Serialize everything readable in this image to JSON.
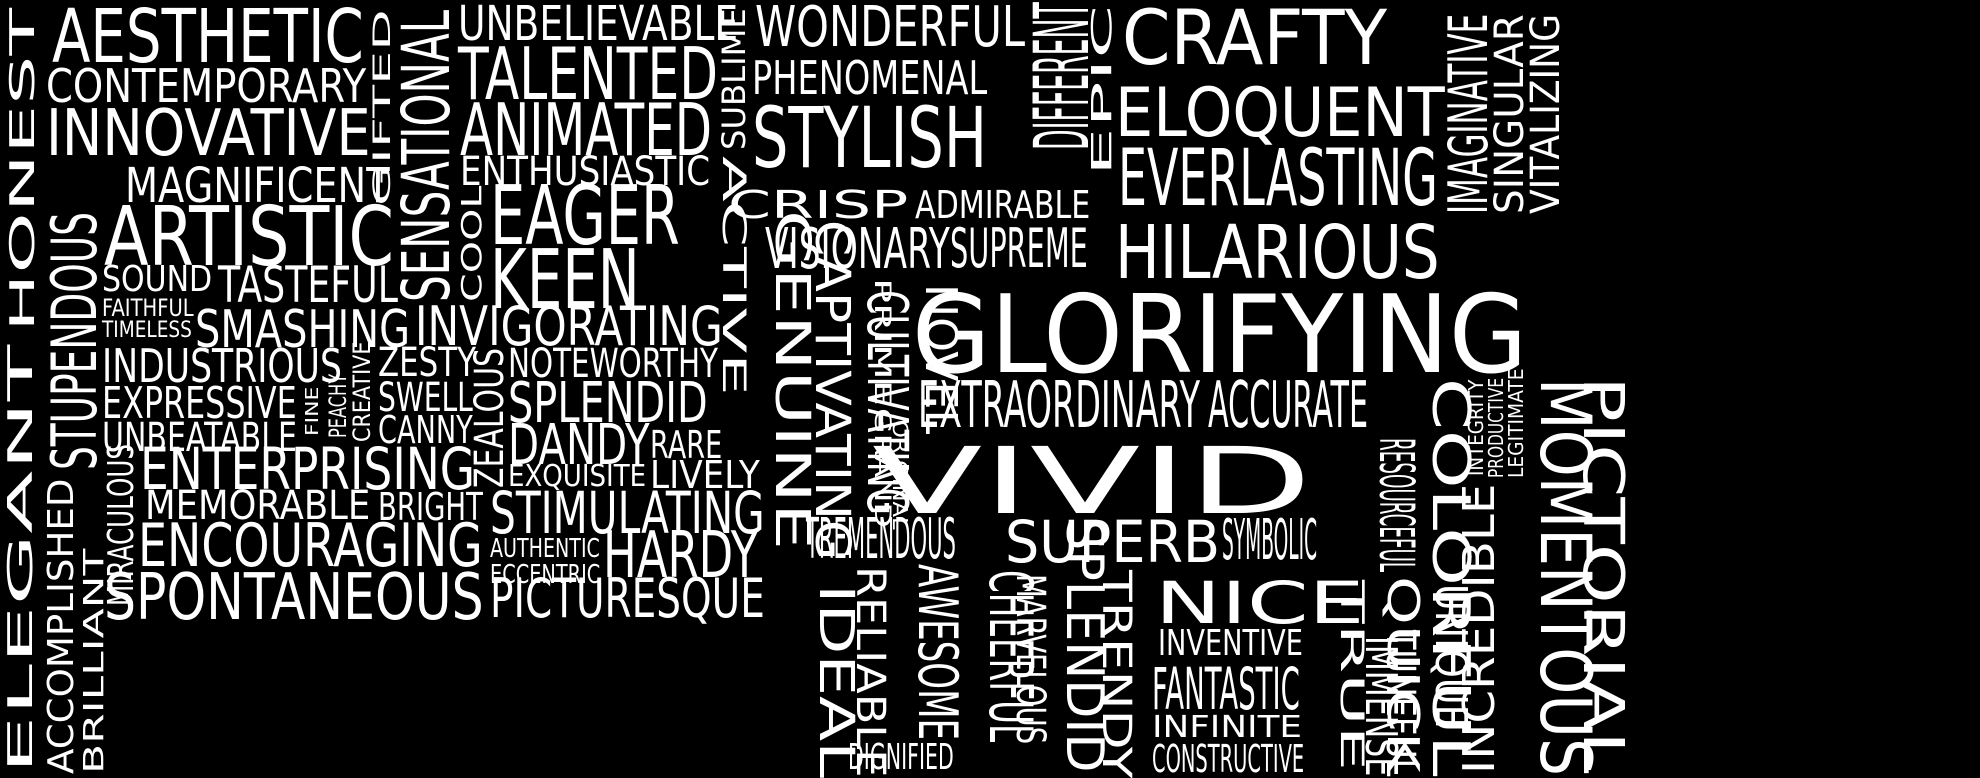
{
  "colors": {
    "background": "#000000",
    "yellow": "#d8e33a",
    "red": "#e8323c",
    "pink": "#e0398f",
    "blue": "#1a9fd8",
    "orange": "#f08a2a"
  },
  "words": [
    {
      "text": "AESTHETIC",
      "color": "red"
    },
    {
      "text": "CONTEMPORARY",
      "color": "yellow"
    },
    {
      "text": "INNOVATIVE",
      "color": "pink"
    },
    {
      "text": "MAGNIFICENT",
      "color": "yellow"
    },
    {
      "text": "ARTISTIC",
      "color": "yellow"
    },
    {
      "text": "SOUND",
      "color": "pink"
    },
    {
      "text": "TASTEFUL",
      "color": "blue"
    },
    {
      "text": "FAITHFUL",
      "color": "orange"
    },
    {
      "text": "TIMELESS",
      "color": "red"
    },
    {
      "text": "SMASHING",
      "color": "yellow"
    },
    {
      "text": "INDUSTRIOUS",
      "color": "blue"
    },
    {
      "text": "EXPRESSIVE",
      "color": "pink"
    },
    {
      "text": "UNBEATABLE",
      "color": "yellow"
    },
    {
      "text": "ENTERPRISING",
      "color": "blue"
    },
    {
      "text": "MEMORABLE",
      "color": "pink"
    },
    {
      "text": "BRIGHT",
      "color": "orange"
    },
    {
      "text": "ENCOURAGING",
      "color": "yellow"
    },
    {
      "text": "SPONTANEOUS",
      "color": "red"
    },
    {
      "text": "UNBELIEVABLE",
      "color": "blue"
    },
    {
      "text": "TALENTED",
      "color": "red"
    },
    {
      "text": "ANIMATED",
      "color": "yellow"
    },
    {
      "text": "ENTHUSIASTIC",
      "color": "blue"
    },
    {
      "text": "EAGER",
      "color": "pink"
    },
    {
      "text": "KEEN",
      "color": "yellow"
    },
    {
      "text": "INVIGORATING",
      "color": "red"
    },
    {
      "text": "ZESTY",
      "color": "orange"
    },
    {
      "text": "SWELL",
      "color": "red"
    },
    {
      "text": "CANNY",
      "color": "yellow"
    },
    {
      "text": "NOTEWORTHY",
      "color": "blue"
    },
    {
      "text": "SPLENDID",
      "color": "red"
    },
    {
      "text": "DANDY",
      "color": "yellow"
    },
    {
      "text": "RARE",
      "color": "blue"
    },
    {
      "text": "EXQUISITE",
      "color": "red"
    },
    {
      "text": "LIVELY",
      "color": "yellow"
    },
    {
      "text": "STIMULATING",
      "color": "yellow"
    },
    {
      "text": "AUTHENTIC",
      "color": "orange"
    },
    {
      "text": "ECCENTRIC",
      "color": "red"
    },
    {
      "text": "HARDY",
      "color": "blue"
    },
    {
      "text": "PICTURESQUE",
      "color": "yellow"
    },
    {
      "text": "WONDERFUL",
      "color": "pink"
    },
    {
      "text": "PHENOMENAL",
      "color": "red"
    },
    {
      "text": "STYLISH",
      "color": "pink"
    },
    {
      "text": "CRISP",
      "color": "yellow"
    },
    {
      "text": "ADMIRABLE",
      "color": "orange"
    },
    {
      "text": "VISIONARY",
      "color": "yellow"
    },
    {
      "text": "SUPREME",
      "color": "pink"
    },
    {
      "text": "CRAFTY",
      "color": "blue"
    },
    {
      "text": "ELOQUENT",
      "color": "blue"
    },
    {
      "text": "EVERLASTING",
      "color": "red"
    },
    {
      "text": "HILARIOUS",
      "color": "pink"
    },
    {
      "text": "GLORIFYING",
      "color": "red"
    },
    {
      "text": "EXTRAORDINARY",
      "color": "yellow"
    },
    {
      "text": "ACCURATE",
      "color": "orange"
    },
    {
      "text": "VIVID",
      "color": "red"
    },
    {
      "text": "TREMENDOUS",
      "color": "yellow"
    },
    {
      "text": "SUPERB",
      "color": "pink"
    },
    {
      "text": "SYMBOLIC",
      "color": "red"
    },
    {
      "text": "NICE",
      "color": "yellow"
    },
    {
      "text": "INVENTIVE",
      "color": "red"
    },
    {
      "text": "FANTASTIC",
      "color": "orange"
    },
    {
      "text": "INFINITE",
      "color": "yellow"
    },
    {
      "text": "CONSTRUCTIVE",
      "color": "yellow"
    },
    {
      "text": "DIGNIFIED",
      "color": "red"
    },
    {
      "text": "HONEST",
      "color": "red"
    },
    {
      "text": "STUPENDOUS",
      "color": "blue"
    },
    {
      "text": "ELEGANT",
      "color": "red"
    },
    {
      "text": "ACCOMPLISHED",
      "color": "yellow"
    },
    {
      "text": "BRILLIANT",
      "color": "pink"
    },
    {
      "text": "MIRACULOUS",
      "color": "blue"
    },
    {
      "text": "GIFTED",
      "color": "orange"
    },
    {
      "text": "SENSATIONAL",
      "color": "orange"
    },
    {
      "text": "CREATIVE",
      "color": "pink"
    },
    {
      "text": "PEACHY",
      "color": "yellow"
    },
    {
      "text": "FINE",
      "color": "yellow"
    },
    {
      "text": "COOL",
      "color": "yellow"
    },
    {
      "text": "ZEALOUS",
      "color": "yellow"
    },
    {
      "text": "SUBLIME",
      "color": "yellow"
    },
    {
      "text": "DIFFERENT",
      "color": "blue"
    },
    {
      "text": "EPIC",
      "color": "blue"
    },
    {
      "text": "IMAGINATIVE",
      "color": "pink"
    },
    {
      "text": "SINGULAR",
      "color": "yellow"
    },
    {
      "text": "VITALIZING",
      "color": "orange"
    },
    {
      "text": "INCREDIBLE",
      "color": "blue"
    },
    {
      "text": "INTEGRITY",
      "color": "yellow"
    },
    {
      "text": "PRODUCTIVE",
      "color": "orange"
    },
    {
      "text": "LEGITIMATE",
      "color": "orange"
    },
    {
      "text": "ACTIVE",
      "color": "yellow"
    },
    {
      "text": "GENUINE",
      "color": "yellow"
    },
    {
      "text": "CAPTIVATING",
      "color": "yellow"
    },
    {
      "text": "CULTIVATING",
      "color": "yellow"
    },
    {
      "text": "PRIME",
      "color": "yellow"
    },
    {
      "text": "GRAND",
      "color": "yellow"
    },
    {
      "text": "ORIGINAL",
      "color": "blue"
    },
    {
      "text": "NOVEL",
      "color": "yellow"
    },
    {
      "text": "IDEAL",
      "color": "red"
    },
    {
      "text": "RELIABLE",
      "color": "yellow"
    },
    {
      "text": "AWESOME",
      "color": "blue"
    },
    {
      "text": "CHEERFUL",
      "color": "yellow"
    },
    {
      "text": "MARVELOUS",
      "color": "blue"
    },
    {
      "text": "SPLENDID",
      "color": "yellow"
    },
    {
      "text": "TRENDY",
      "color": "blue"
    },
    {
      "text": "TRUE",
      "color": "yellow"
    },
    {
      "text": "QUICK",
      "color": "blue"
    },
    {
      "text": "UNIQUE",
      "color": "yellow"
    },
    {
      "text": "RESOURCEFUL",
      "color": "red"
    },
    {
      "text": "IMMENSE",
      "color": "pink"
    },
    {
      "text": "TUNEFUL",
      "color": "yellow"
    },
    {
      "text": "COLORFUL",
      "color": "blue"
    },
    {
      "text": "MOMENTOUS",
      "color": "blue"
    },
    {
      "text": "PICTORIAL",
      "color": "orange"
    },
    {
      "text": "EXCEPTIONAL",
      "color": "red"
    }
  ]
}
